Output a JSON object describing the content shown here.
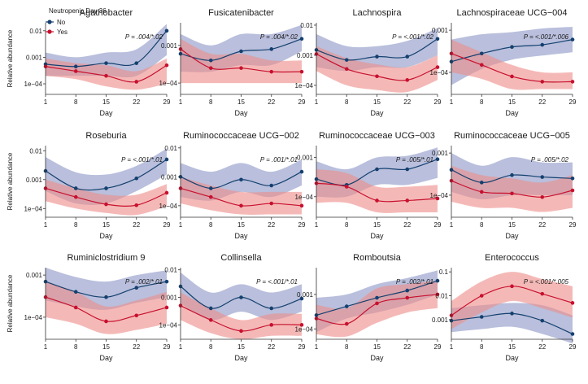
{
  "colors": {
    "no_line": "#14406f",
    "no_band": "#8e97c6",
    "yes_line": "#c8102e",
    "yes_band": "#ee8e8a",
    "axis": "#333333"
  },
  "legend": {
    "title": "Neutropenic Day 36",
    "entries": [
      {
        "key": "no",
        "label": "No"
      },
      {
        "key": "yes",
        "label": "Yes"
      }
    ]
  },
  "chart_data": [
    {
      "type": "line",
      "title": "Agathobacter",
      "pvalue": "P = .004/*.02",
      "x": [
        1,
        8,
        15,
        22,
        29
      ],
      "xlabel": "Day",
      "ylabel": "Relative abundance",
      "yticks": [
        0.0001,
        0.001,
        0.01
      ],
      "ytick_labels": [
        "1e−04",
        "0.001",
        "0.01"
      ],
      "ylim": [
        4e-05,
        0.02
      ],
      "series": [
        {
          "name": "No",
          "values": [
            0.00055,
            0.00045,
            0.0006,
            0.0006,
            0.01
          ],
          "lower": [
            0.0002,
            0.0002,
            0.0002,
            0.0002,
            0.0012
          ],
          "upper": [
            0.0015,
            0.001,
            0.0015,
            0.002,
            0.018
          ]
        },
        {
          "name": "Yes",
          "values": [
            0.00045,
            0.0003,
            0.0002,
            0.00012,
            0.0005
          ],
          "lower": [
            0.0002,
            0.00015,
            8e-05,
            6e-05,
            0.0001
          ],
          "upper": [
            0.0009,
            0.0006,
            0.0005,
            0.0003,
            0.0009
          ]
        }
      ]
    },
    {
      "type": "line",
      "title": "Fusicatenibacter",
      "pvalue": "P = .004/*.02",
      "x": [
        1,
        8,
        15,
        22,
        29
      ],
      "xlabel": "Day",
      "ylabel": "",
      "yticks": [
        0.0001,
        0.001
      ],
      "ytick_labels": [
        "1e−04",
        "0.001"
      ],
      "ylim": [
        5e-05,
        0.004
      ],
      "series": [
        {
          "name": "No",
          "values": [
            0.0006,
            0.0004,
            0.0007,
            0.0008,
            0.0015
          ],
          "lower": [
            0.0002,
            0.0002,
            0.0003,
            0.0003,
            0.0007
          ],
          "upper": [
            0.002,
            0.001,
            0.002,
            0.002,
            0.0035
          ]
        },
        {
          "name": "Yes",
          "values": [
            0.0008,
            0.00025,
            0.00025,
            0.0002,
            0.0002
          ],
          "lower": [
            0.0001,
            0.0001,
            0.0001,
            0.0001,
            0.0001
          ],
          "upper": [
            0.0015,
            0.0006,
            0.0006,
            0.0004,
            0.0004
          ]
        }
      ]
    },
    {
      "type": "line",
      "title": "Lachnospira",
      "pvalue": "P = <.001/*.02",
      "x": [
        1,
        8,
        15,
        22,
        29
      ],
      "xlabel": "Day",
      "ylabel": "",
      "yticks": [
        0.0001,
        0.001,
        0.01
      ],
      "ytick_labels": [
        "1e−04",
        "0.001",
        "0.01"
      ],
      "ylim": [
        5e-05,
        0.012
      ],
      "series": [
        {
          "name": "No",
          "values": [
            0.0015,
            0.0007,
            0.0009,
            0.0009,
            0.0035
          ],
          "lower": [
            0.0004,
            0.0003,
            0.0004,
            0.0004,
            0.001
          ],
          "upper": [
            0.005,
            0.002,
            0.002,
            0.003,
            0.008
          ]
        },
        {
          "name": "Yes",
          "values": [
            0.0011,
            0.00035,
            0.0002,
            0.00015,
            0.0004
          ],
          "lower": [
            0.0003,
            0.0001,
            7e-05,
            6e-05,
            0.00015
          ],
          "upper": [
            0.002,
            0.0008,
            0.0005,
            0.0004,
            0.001
          ]
        }
      ]
    },
    {
      "type": "line",
      "title": "Lachnospiraceae UCG−004",
      "pvalue": "P = <.001/*.006",
      "x": [
        1,
        8,
        15,
        22,
        29
      ],
      "xlabel": "Day",
      "ylabel": "",
      "yticks": [
        0.0001,
        0.001
      ],
      "ytick_labels": [
        "1e−04",
        "0.001"
      ],
      "ylim": [
        3e-05,
        0.0015
      ],
      "series": [
        {
          "name": "No",
          "values": [
            0.00018,
            0.00028,
            0.0004,
            0.00045,
            0.0006
          ],
          "lower": [
            5e-05,
            0.00012,
            0.0002,
            0.00025,
            0.0003
          ],
          "upper": [
            0.0006,
            0.0008,
            0.0009,
            0.0011,
            0.0012
          ]
        },
        {
          "name": "Yes",
          "values": [
            0.00028,
            0.00015,
            8e-05,
            6e-05,
            6e-05
          ],
          "lower": [
            0.0001,
            7e-05,
            4e-05,
            4e-05,
            4e-05
          ],
          "upper": [
            0.0006,
            0.0003,
            0.00015,
            0.0001,
            0.0001
          ]
        }
      ]
    },
    {
      "type": "line",
      "title": "Roseburia",
      "pvalue": "P = <.001/*.01",
      "x": [
        1,
        8,
        15,
        22,
        29
      ],
      "xlabel": "Day",
      "ylabel": "Relative abundance",
      "yticks": [
        0.0001,
        0.001,
        0.01
      ],
      "ytick_labels": [
        "1e−04",
        "0.001",
        "0.01"
      ],
      "ylim": [
        5e-05,
        0.015
      ],
      "series": [
        {
          "name": "No",
          "values": [
            0.002,
            0.0005,
            0.0005,
            0.0011,
            0.005
          ],
          "lower": [
            0.0004,
            0.00015,
            0.00015,
            0.0004,
            0.0015
          ],
          "upper": [
            0.006,
            0.0018,
            0.0015,
            0.003,
            0.012
          ]
        },
        {
          "name": "Yes",
          "values": [
            0.0005,
            0.00025,
            0.00014,
            0.00013,
            0.00035
          ],
          "lower": [
            0.00018,
            0.0001,
            7e-05,
            6e-05,
            0.00012
          ],
          "upper": [
            0.001,
            0.0005,
            0.0003,
            0.0003,
            0.0007
          ]
        }
      ]
    },
    {
      "type": "line",
      "title": "Ruminococcaceae UCG−002",
      "pvalue": "P = .001/*.01",
      "x": [
        1,
        8,
        15,
        22,
        29
      ],
      "xlabel": "Day",
      "ylabel": "",
      "yticks": [
        0.0001,
        0.001,
        0.01
      ],
      "ytick_labels": [
        "1e−04",
        "0.001",
        "0.01"
      ],
      "ylim": [
        4e-05,
        0.012
      ],
      "series": [
        {
          "name": "No",
          "values": [
            0.001,
            0.0004,
            0.0008,
            0.0005,
            0.0015
          ],
          "lower": [
            0.0002,
            0.00015,
            0.0003,
            0.0002,
            0.0005
          ],
          "upper": [
            0.003,
            0.0015,
            0.003,
            0.0015,
            0.004
          ]
        },
        {
          "name": "Yes",
          "values": [
            0.0004,
            0.0002,
            0.0001,
            0.00012,
            0.0001
          ],
          "lower": [
            0.00012,
            7e-05,
            5e-05,
            5e-05,
            5e-05
          ],
          "upper": [
            0.001,
            0.0005,
            0.0003,
            0.0003,
            0.0003
          ]
        }
      ]
    },
    {
      "type": "line",
      "title": "Ruminococcaceae UCG−003",
      "pvalue": "P = .005/*.01",
      "x": [
        1,
        8,
        15,
        22,
        29
      ],
      "xlabel": "Day",
      "ylabel": "",
      "yticks": [
        0.0001,
        0.001
      ],
      "ytick_labels": [
        "1e−04",
        "0.001"
      ],
      "ylim": [
        3e-05,
        0.002
      ],
      "series": [
        {
          "name": "No",
          "values": [
            0.00028,
            0.0002,
            0.0005,
            0.0005,
            0.0009
          ],
          "lower": [
            0.0001,
            0.0001,
            0.0002,
            0.0002,
            0.0003
          ],
          "upper": [
            0.0008,
            0.0005,
            0.001,
            0.0011,
            0.0018
          ]
        },
        {
          "name": "Yes",
          "values": [
            0.00022,
            0.00018,
            8e-05,
            8e-05,
            9e-05
          ],
          "lower": [
            7e-05,
            7e-05,
            4e-05,
            4e-05,
            4e-05
          ],
          "upper": [
            0.0005,
            0.0004,
            0.00018,
            0.00018,
            0.0002
          ]
        }
      ]
    },
    {
      "type": "line",
      "title": "Ruminococcaceae UCG−005",
      "pvalue": "P = .005/*.02",
      "x": [
        1,
        8,
        15,
        22,
        29
      ],
      "xlabel": "Day",
      "ylabel": "",
      "yticks": [
        0.0001,
        0.001
      ],
      "ytick_labels": [
        "1e−04",
        "0.001"
      ],
      "ylim": [
        3e-05,
        0.0015
      ],
      "series": [
        {
          "name": "No",
          "values": [
            0.0004,
            0.0002,
            0.0003,
            0.00027,
            0.00025
          ],
          "lower": [
            0.00012,
            8e-05,
            0.0001,
            0.0001,
            0.0001
          ],
          "upper": [
            0.001,
            0.0005,
            0.0008,
            0.0006,
            0.0006
          ]
        },
        {
          "name": "Yes",
          "values": [
            0.00022,
            0.00012,
            0.00011,
            9e-05,
            0.00013
          ],
          "lower": [
            7e-05,
            5e-05,
            5e-05,
            4e-05,
            5e-05
          ],
          "upper": [
            0.0005,
            0.0003,
            0.00025,
            0.0002,
            0.0003
          ]
        }
      ]
    },
    {
      "type": "line",
      "title": "Ruminiclostridium 9",
      "pvalue": "P = .002/*.01",
      "x": [
        1,
        8,
        15,
        22,
        29
      ],
      "xlabel": "Day",
      "ylabel": "Relative abundance",
      "yticks": [
        0.0001,
        0.001
      ],
      "ytick_labels": [
        "1e−04",
        "0.001"
      ],
      "ylim": [
        3e-05,
        0.0015
      ],
      "series": [
        {
          "name": "No",
          "values": [
            0.0007,
            0.0004,
            0.0003,
            0.0005,
            0.0007
          ],
          "lower": [
            0.00025,
            0.00018,
            0.00015,
            0.00022,
            0.0003
          ],
          "upper": [
            0.0015,
            0.0009,
            0.0007,
            0.001,
            0.0013
          ]
        },
        {
          "name": "Yes",
          "values": [
            0.0003,
            0.00017,
            8e-05,
            0.00011,
            0.00017
          ],
          "lower": [
            0.0001,
            7e-05,
            4e-05,
            5e-05,
            7e-05
          ],
          "upper": [
            0.0007,
            0.0004,
            0.00018,
            0.00025,
            0.0004
          ]
        }
      ]
    },
    {
      "type": "line",
      "title": "Collinsella",
      "pvalue": "P = <.001/*.01",
      "x": [
        1,
        8,
        15,
        22,
        29
      ],
      "xlabel": "Day",
      "ylabel": "",
      "yticks": [
        0.0001,
        0.001,
        0.01
      ],
      "ytick_labels": [
        "1e−04",
        "0.001",
        "0.01"
      ],
      "ylim": [
        3e-05,
        0.012
      ],
      "series": [
        {
          "name": "No",
          "values": [
            0.0025,
            0.0004,
            0.001,
            0.0004,
            0.0009
          ],
          "lower": [
            0.0006,
            0.00015,
            0.0003,
            0.00015,
            0.0003
          ],
          "upper": [
            0.008,
            0.0015,
            0.003,
            0.0015,
            0.003
          ]
        },
        {
          "name": "Yes",
          "values": [
            0.0005,
            0.00015,
            6e-05,
            0.0001,
            0.0001
          ],
          "lower": [
            0.00015,
            5e-05,
            3e-05,
            4e-05,
            4e-05
          ],
          "upper": [
            0.0015,
            0.0004,
            0.00015,
            0.00025,
            0.00025
          ]
        }
      ]
    },
    {
      "type": "line",
      "title": "Romboutsia",
      "pvalue": "P = .002/*.01",
      "x": [
        1,
        8,
        15,
        22,
        29
      ],
      "xlabel": "Day",
      "ylabel": "",
      "yticks": [
        0.0001,
        0.001
      ],
      "ytick_labels": [
        "1e−04",
        "0.001"
      ],
      "ylim": [
        5e-05,
        0.006
      ],
      "series": [
        {
          "name": "No",
          "values": [
            0.00025,
            0.00045,
            0.0008,
            0.0013,
            0.0025
          ],
          "lower": [
            8e-05,
            0.0002,
            0.0003,
            0.0005,
            0.001
          ],
          "upper": [
            0.0008,
            0.001,
            0.002,
            0.003,
            0.005
          ]
        },
        {
          "name": "Yes",
          "values": [
            0.0002,
            0.00014,
            0.00055,
            0.0008,
            0.001
          ],
          "lower": [
            7e-05,
            6e-05,
            0.00015,
            0.0003,
            0.0004
          ],
          "upper": [
            0.0005,
            0.0004,
            0.0015,
            0.002,
            0.0025
          ]
        }
      ]
    },
    {
      "type": "line",
      "title": "Enterococcus",
      "pvalue": "P = <.001/*.005",
      "x": [
        1,
        8,
        15,
        22,
        29
      ],
      "xlabel": "Day",
      "ylabel": "",
      "yticks": [
        0.001,
        0.01,
        0.1
      ],
      "ytick_labels": [
        "0.001",
        "0.01",
        "0.1"
      ],
      "ylim": [
        0.00015,
        0.15
      ],
      "series": [
        {
          "name": "No",
          "values": [
            0.0009,
            0.0013,
            0.0018,
            0.0009,
            0.00025
          ],
          "lower": [
            0.0003,
            0.0004,
            0.0005,
            0.00025,
            0.0001
          ],
          "upper": [
            0.003,
            0.004,
            0.005,
            0.004,
            0.0015
          ]
        },
        {
          "name": "Yes",
          "values": [
            0.0015,
            0.01,
            0.025,
            0.012,
            0.005
          ],
          "lower": [
            0.0004,
            0.002,
            0.006,
            0.003,
            0.0012
          ],
          "upper": [
            0.006,
            0.04,
            0.1,
            0.05,
            0.025
          ]
        }
      ]
    }
  ]
}
